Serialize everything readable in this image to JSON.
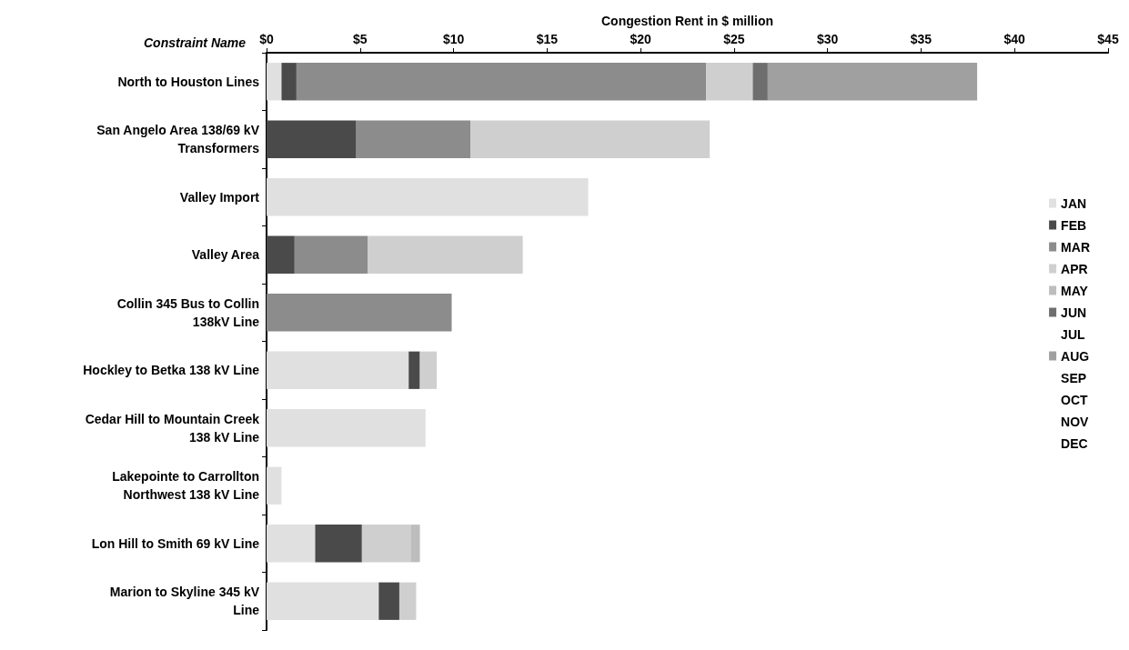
{
  "chart_data": {
    "type": "bar",
    "orientation": "horizontal",
    "stacked": true,
    "xlabel": "Congestion Rent in $ million",
    "ylabel": "Constraint Name",
    "categories": [
      "North to Houston Lines",
      "San Angelo Area 138/69 kV Transformers",
      "Valley Import",
      "Valley Area",
      "Collin 345 Bus to Collin 138kV Line",
      "Hockley to Betka 138 kV Line",
      "Cedar Hill to Mountain Creek 138 kV Line",
      "Lakepointe to Carrollton Northwest 138 kV Line",
      "Lon Hill to Smith 69 kV Line",
      "Marion to Skyline 345 kV Line"
    ],
    "xlim": [
      0,
      45
    ],
    "xticks": [
      {
        "value": 0,
        "label": "$0"
      },
      {
        "value": 5,
        "label": "$5"
      },
      {
        "value": 10,
        "label": "$10"
      },
      {
        "value": 15,
        "label": "$15"
      },
      {
        "value": 20,
        "label": "$20"
      },
      {
        "value": 25,
        "label": "$25"
      },
      {
        "value": 30,
        "label": "$30"
      },
      {
        "value": 35,
        "label": "$35"
      },
      {
        "value": 40,
        "label": "$40"
      },
      {
        "value": 45,
        "label": "$45"
      }
    ],
    "grid": false,
    "legend": "right",
    "series": [
      {
        "name": "JAN",
        "color": "#e0e0e0",
        "values": [
          0.8,
          null,
          17.2,
          null,
          null,
          7.6,
          8.5,
          0.8,
          2.6,
          6.0
        ]
      },
      {
        "name": "FEB",
        "color": "#4a4a4a",
        "values": [
          0.8,
          4.8,
          null,
          1.5,
          null,
          0.6,
          null,
          null,
          2.5,
          1.1
        ]
      },
      {
        "name": "MAR",
        "color": "#8c8c8c",
        "values": [
          21.9,
          6.1,
          null,
          3.9,
          9.9,
          null,
          null,
          null,
          null,
          null
        ]
      },
      {
        "name": "APR",
        "color": "#cfcfcf",
        "values": [
          2.5,
          12.8,
          null,
          8.3,
          null,
          0.9,
          null,
          null,
          2.6,
          0.9
        ]
      },
      {
        "name": "MAY",
        "color": "#bdbdbd",
        "values": [
          null,
          null,
          null,
          null,
          null,
          null,
          null,
          null,
          0.5,
          null
        ]
      },
      {
        "name": "JUN",
        "color": "#6e6e6e",
        "values": [
          0.8,
          null,
          null,
          null,
          null,
          null,
          null,
          null,
          null,
          null
        ]
      },
      {
        "name": "JUL",
        "values": [
          null,
          null,
          null,
          null,
          null,
          null,
          null,
          null,
          null,
          null
        ]
      },
      {
        "name": "AUG",
        "color": "#a0a0a0",
        "values": [
          11.2,
          null,
          null,
          null,
          null,
          null,
          null,
          null,
          null,
          null
        ]
      },
      {
        "name": "SEP",
        "values": [
          null,
          null,
          null,
          null,
          null,
          null,
          null,
          null,
          null,
          null
        ]
      },
      {
        "name": "OCT",
        "values": [
          null,
          null,
          null,
          null,
          null,
          null,
          null,
          null,
          null,
          null
        ]
      },
      {
        "name": "NOV",
        "values": [
          null,
          null,
          null,
          null,
          null,
          null,
          null,
          null,
          null,
          null
        ]
      },
      {
        "name": "DEC",
        "values": [
          null,
          null,
          null,
          null,
          null,
          null,
          null,
          null,
          null,
          null
        ]
      }
    ]
  }
}
